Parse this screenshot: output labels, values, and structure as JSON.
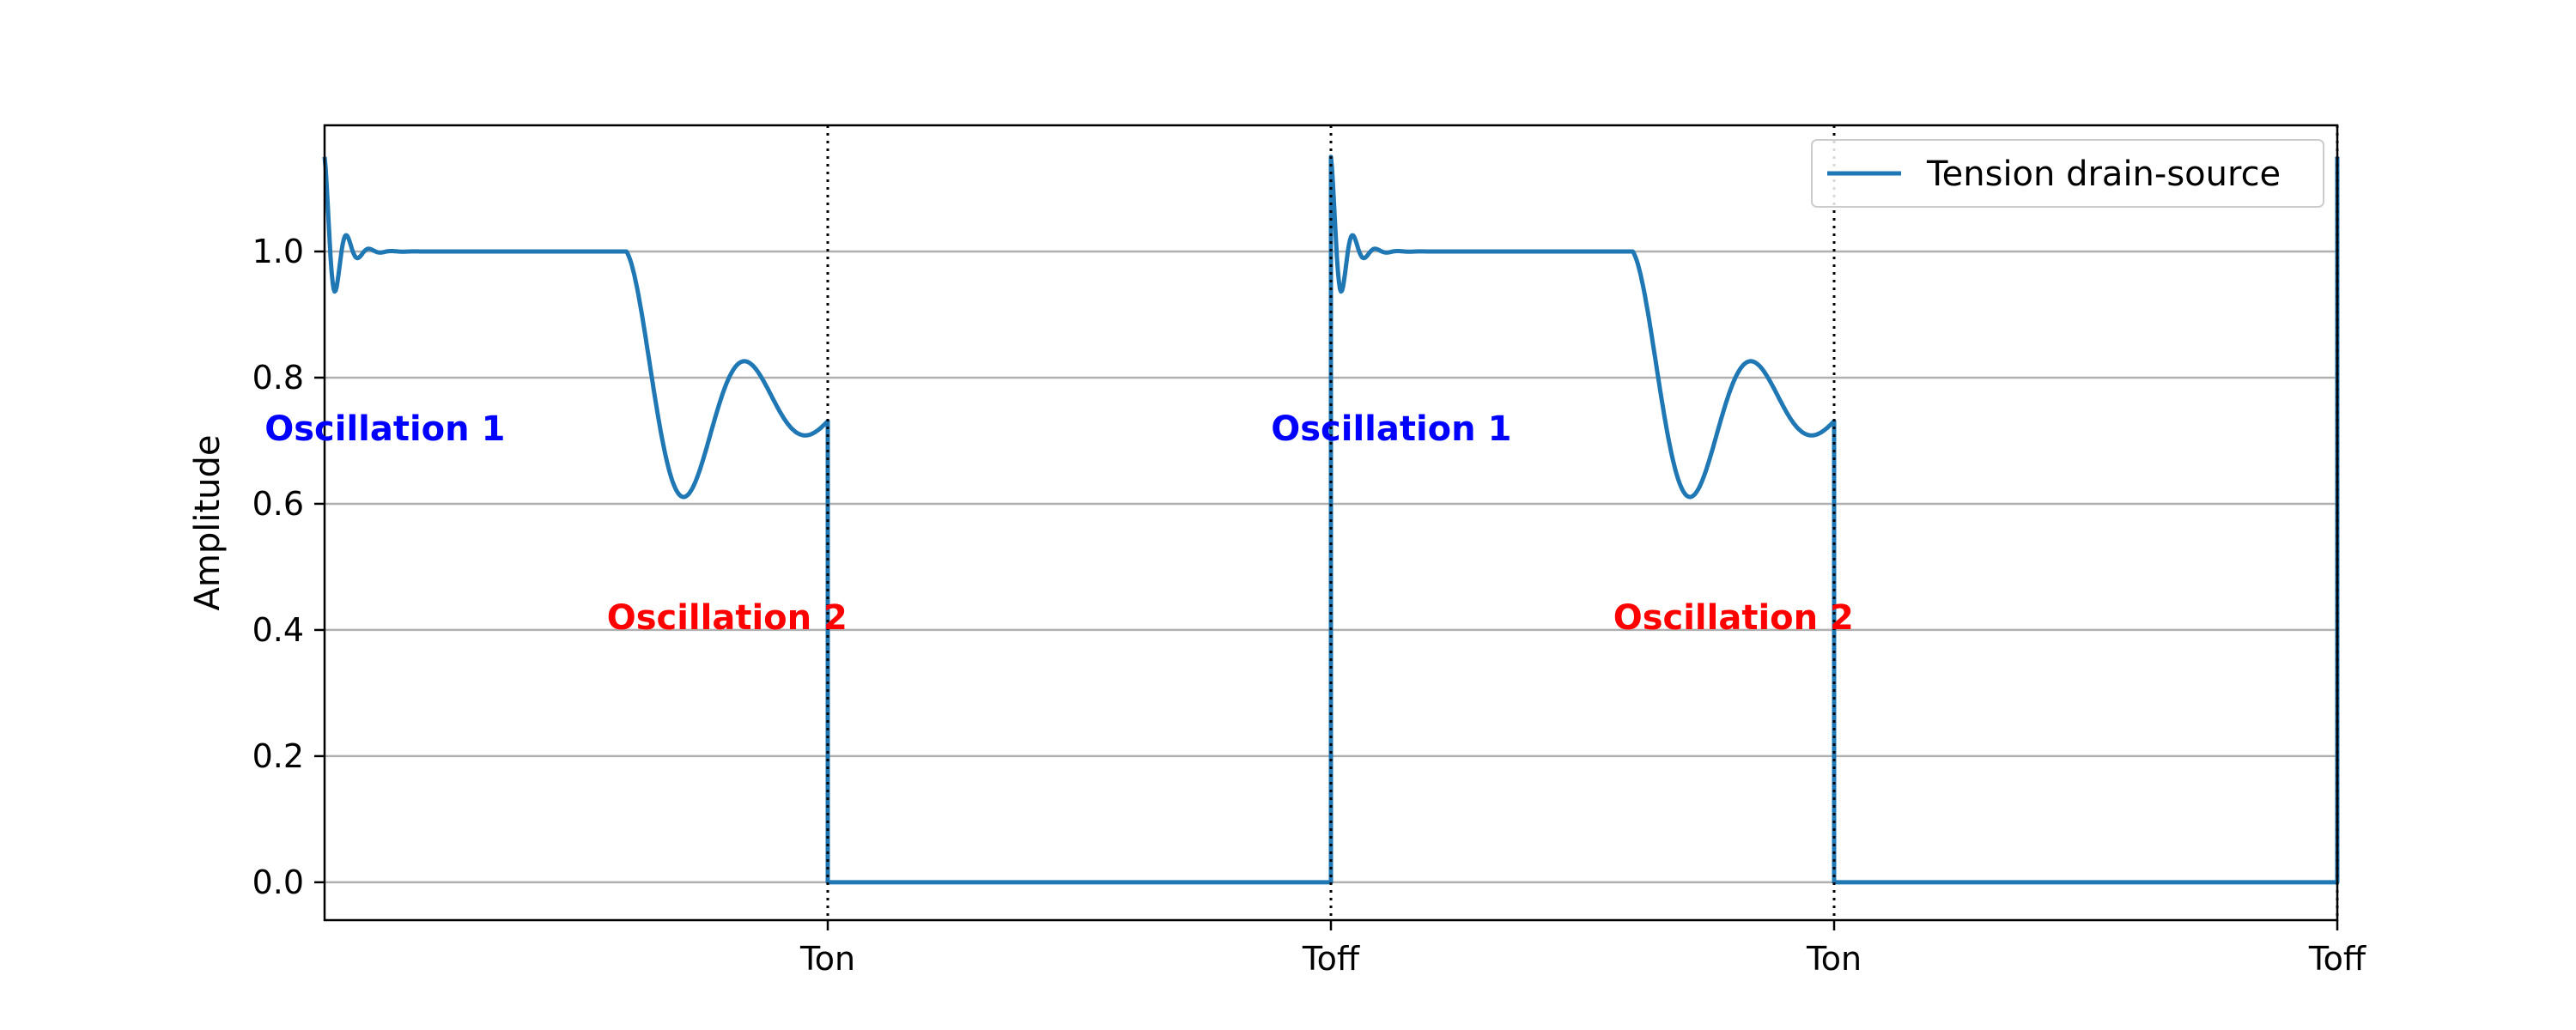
{
  "chart_data": {
    "type": "line",
    "title": "",
    "xlabel": "",
    "ylabel": "Amplitude",
    "xlim": [
      0,
      4
    ],
    "ylim": [
      -0.06,
      1.2
    ],
    "yticks": [
      0.0,
      0.2,
      0.4,
      0.6,
      0.8,
      1.0
    ],
    "ytick_labels": [
      "0.0",
      "0.2",
      "0.4",
      "0.6",
      "0.8",
      "1.0"
    ],
    "xticks": [
      1,
      2,
      3,
      4
    ],
    "xtick_labels": [
      "Ton",
      "Toff",
      "Ton",
      "Toff"
    ],
    "grid": "horizontal",
    "legend_position": "top-right",
    "vlines": [
      1,
      2,
      3,
      4
    ],
    "series": [
      {
        "name": "Tension drain-source",
        "color": "#1f77b4",
        "periods": [
          0,
          1,
          2,
          3
        ],
        "on_ringing": {
          "initial_overshoot": 0.15,
          "decay_per_unit_time": 40,
          "angular_frequency": 140,
          "settled_level": 1.0
        },
        "switch_time": 0.6,
        "off_ringing": {
          "initial_drop": 0.43,
          "decay_per_unit_time": 5.0,
          "angular_frequency": 26,
          "settled_level": 0.75
        },
        "low_level": 0.0
      }
    ],
    "annotations": [
      {
        "text": "Oscillation 1",
        "color": "#0000ff",
        "x": 0.12,
        "y": 0.72
      },
      {
        "text": "Oscillation 2",
        "color": "#ff0000",
        "x": 0.8,
        "y": 0.42
      },
      {
        "text": "Oscillation 1",
        "color": "#0000ff",
        "x": 2.12,
        "y": 0.72
      },
      {
        "text": "Oscillation 2",
        "color": "#ff0000",
        "x": 2.8,
        "y": 0.42
      }
    ]
  }
}
